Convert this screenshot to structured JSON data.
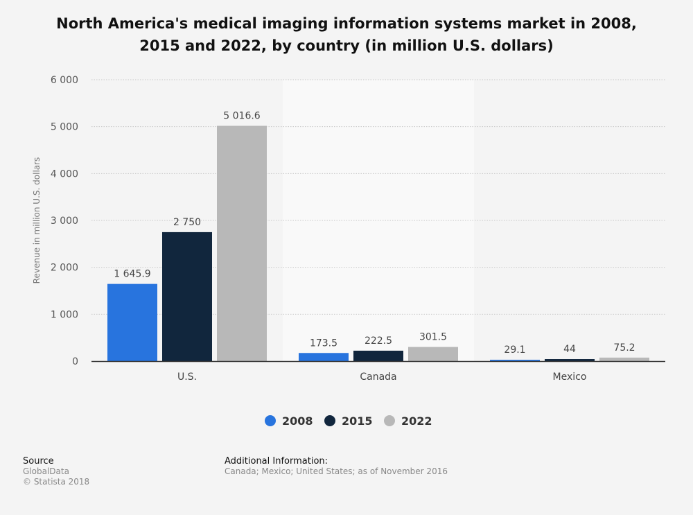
{
  "chart_data": {
    "type": "bar",
    "title": "North America's medical imaging information systems market in 2008, 2015 and 2022, by country (in million U.S. dollars)",
    "ylabel": "Revenue in million U.S. dollars",
    "xlabel": "",
    "ylim": [
      0,
      6000
    ],
    "yticks": [
      0,
      1000,
      2000,
      3000,
      4000,
      5000,
      6000
    ],
    "ytick_labels": [
      "0",
      "1 000",
      "2 000",
      "3 000",
      "4 000",
      "5 000",
      "6 000"
    ],
    "categories": [
      "U.S.",
      "Canada",
      "Mexico"
    ],
    "series": [
      {
        "name": "2008",
        "color": "#2874de",
        "values": [
          1645.9,
          173.5,
          29.1
        ],
        "labels": [
          "1 645.9",
          "173.5",
          "29.1"
        ]
      },
      {
        "name": "2015",
        "color": "#11263d",
        "values": [
          2750,
          222.5,
          44
        ],
        "labels": [
          "2 750",
          "222.5",
          "44"
        ]
      },
      {
        "name": "2022",
        "color": "#b8b8b8",
        "values": [
          5016.6,
          301.5,
          75.2
        ],
        "labels": [
          "5 016.6",
          "301.5",
          "75.2"
        ]
      }
    ],
    "grid": true,
    "legend_position": "bottom-center"
  },
  "footer": {
    "source_heading": "Source",
    "source_name": "GlobalData",
    "copyright": "© Statista 2018",
    "additional_heading": "Additional Information:",
    "additional_text": "Canada; Mexico; United States; as of November 2016"
  }
}
